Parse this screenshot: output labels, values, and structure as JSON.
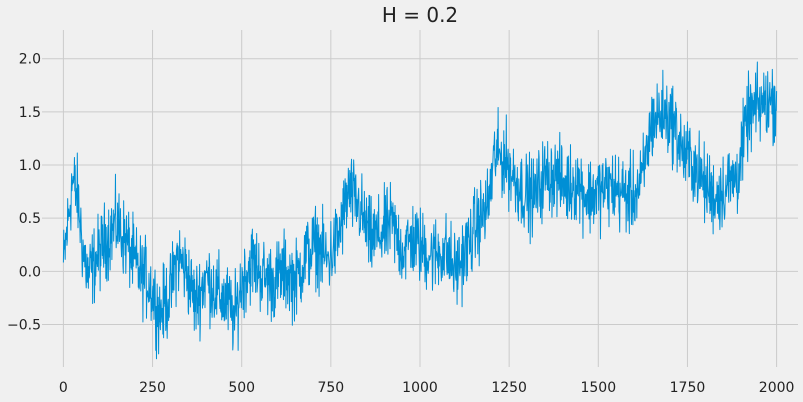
{
  "chart_data": {
    "type": "line",
    "title": "H = 0.2",
    "xlabel": "",
    "ylabel": "",
    "xlim": [
      -60,
      2060
    ],
    "ylim": [
      -0.9,
      2.27
    ],
    "grid": true,
    "x_ticks": [
      0,
      250,
      500,
      750,
      1000,
      1250,
      1500,
      1750,
      2000
    ],
    "x_tick_labels": [
      "0",
      "250",
      "500",
      "750",
      "1000",
      "1250",
      "1500",
      "1750",
      "2000"
    ],
    "y_ticks": [
      -0.5,
      0.0,
      0.5,
      1.0,
      1.5,
      2.0
    ],
    "y_tick_labels": [
      "−0.5",
      "0.0",
      "0.5",
      "1.0",
      "1.5",
      "2.0"
    ],
    "colors": {
      "background": "#f0f0f0",
      "grid": "#cbcbcb",
      "series": "#008fd5",
      "text": "#222222"
    },
    "series": [
      {
        "n_points": 2001,
        "x_start": 0,
        "x_step": 1,
        "anchors": [
          [
            0,
            0.05
          ],
          [
            25,
            0.85
          ],
          [
            40,
            0.7
          ],
          [
            55,
            0.2
          ],
          [
            70,
            -0.05
          ],
          [
            90,
            0.1
          ],
          [
            120,
            0.3
          ],
          [
            150,
            0.45
          ],
          [
            180,
            0.25
          ],
          [
            210,
            0.0
          ],
          [
            240,
            -0.1
          ],
          [
            270,
            -0.4
          ],
          [
            300,
            -0.2
          ],
          [
            320,
            0.15
          ],
          [
            345,
            0.0
          ],
          [
            370,
            -0.3
          ],
          [
            400,
            -0.05
          ],
          [
            430,
            -0.2
          ],
          [
            460,
            -0.3
          ],
          [
            480,
            -0.45
          ],
          [
            500,
            -0.1
          ],
          [
            530,
            0.1
          ],
          [
            560,
            -0.05
          ],
          [
            590,
            -0.1
          ],
          [
            620,
            0.0
          ],
          [
            650,
            -0.1
          ],
          [
            680,
            0.15
          ],
          [
            710,
            0.25
          ],
          [
            740,
            0.1
          ],
          [
            770,
            0.3
          ],
          [
            800,
            0.75
          ],
          [
            830,
            0.6
          ],
          [
            860,
            0.3
          ],
          [
            890,
            0.35
          ],
          [
            920,
            0.45
          ],
          [
            950,
            0.2
          ],
          [
            980,
            0.3
          ],
          [
            1010,
            0.2
          ],
          [
            1040,
            0.15
          ],
          [
            1070,
            0.2
          ],
          [
            1100,
            0.0
          ],
          [
            1130,
            0.2
          ],
          [
            1160,
            0.45
          ],
          [
            1190,
            0.6
          ],
          [
            1210,
            1.1
          ],
          [
            1240,
            1.05
          ],
          [
            1260,
            0.9
          ],
          [
            1290,
            0.75
          ],
          [
            1320,
            0.7
          ],
          [
            1350,
            0.9
          ],
          [
            1380,
            0.9
          ],
          [
            1410,
            0.8
          ],
          [
            1440,
            0.85
          ],
          [
            1470,
            0.7
          ],
          [
            1500,
            0.75
          ],
          [
            1530,
            0.8
          ],
          [
            1560,
            0.75
          ],
          [
            1590,
            0.7
          ],
          [
            1620,
            0.8
          ],
          [
            1650,
            1.4
          ],
          [
            1680,
            1.5
          ],
          [
            1710,
            1.4
          ],
          [
            1740,
            1.1
          ],
          [
            1770,
            1.0
          ],
          [
            1800,
            0.8
          ],
          [
            1830,
            0.7
          ],
          [
            1860,
            0.8
          ],
          [
            1890,
            0.9
          ],
          [
            1920,
            1.45
          ],
          [
            1950,
            1.55
          ],
          [
            1980,
            1.6
          ],
          [
            2000,
            1.6
          ]
        ],
        "noise_amplitude": 0.18
      }
    ]
  }
}
